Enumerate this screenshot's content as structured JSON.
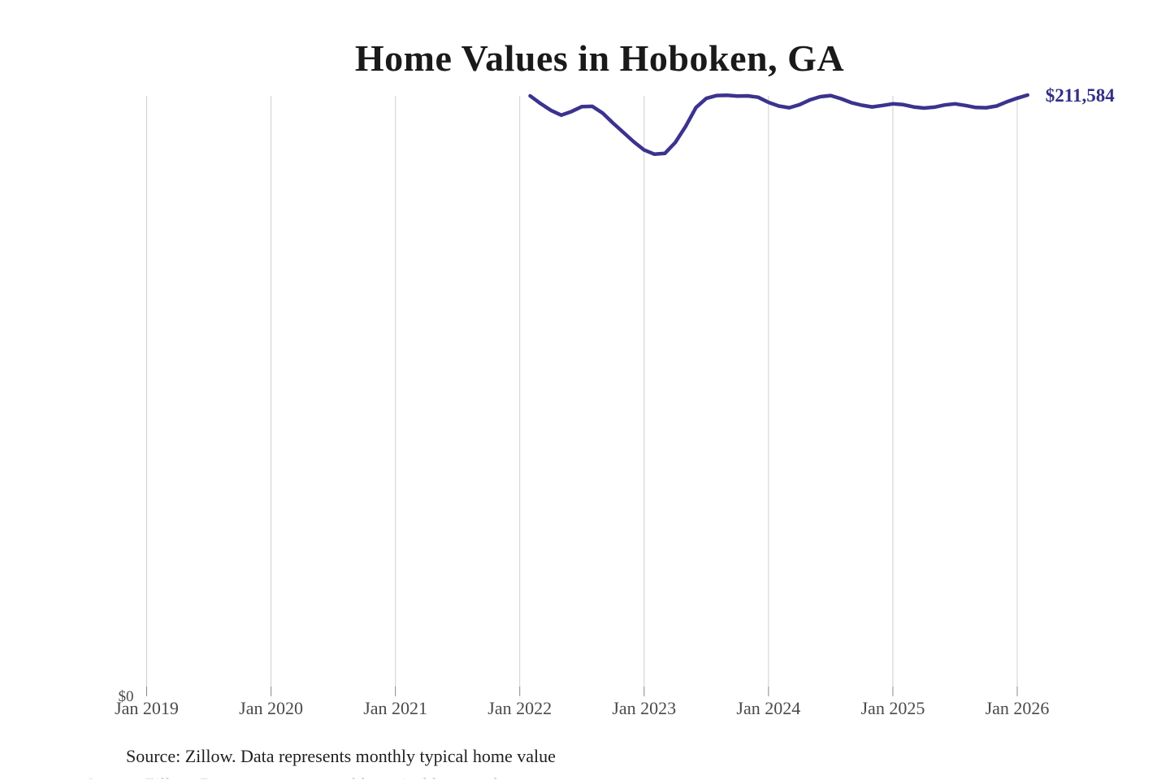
{
  "title": "Home Values in Hoboken, GA",
  "annotation": {
    "end_value_label": "$211,584"
  },
  "footer": {
    "source": "Source: Zillow. Data represents monthly typical home value"
  },
  "chart_data": {
    "type": "line",
    "title": "Home Values in Hoboken, GA",
    "xlabel": "",
    "ylabel": "",
    "x_tick_labels": [
      "Jan 2019",
      "Jan 2020",
      "Jan 2021",
      "Jan 2022",
      "Jan 2023",
      "Jan 2024",
      "Jan 2025",
      "Jan 2026"
    ],
    "y_zero_label": "$0",
    "end_label": "$211,584",
    "ylim": [
      0,
      211584
    ],
    "grid": "vertical-gridlines-only",
    "legend": "none",
    "line_color": "#3b338e",
    "grid_color": "#cfcfcf",
    "tick_color": "#8a8a8a",
    "source_note": "Source: Zillow. Data represents monthly typical home value",
    "series": [
      {
        "name": "Monthly typical home value",
        "months": [
          "2022-02",
          "2022-03",
          "2022-04",
          "2022-05",
          "2022-06",
          "2022-07",
          "2022-08",
          "2022-09",
          "2022-10",
          "2022-11",
          "2022-12",
          "2023-01",
          "2023-02",
          "2023-03",
          "2023-04",
          "2023-05",
          "2023-06",
          "2023-07",
          "2023-08",
          "2023-09",
          "2023-10",
          "2023-11",
          "2023-12",
          "2024-01",
          "2024-02",
          "2024-03",
          "2024-04",
          "2024-05",
          "2024-06",
          "2024-07",
          "2024-08",
          "2024-09",
          "2024-10",
          "2024-11",
          "2024-12",
          "2025-01",
          "2025-02",
          "2025-03",
          "2025-04",
          "2025-05",
          "2025-06",
          "2025-07",
          "2025-08",
          "2025-09",
          "2025-10",
          "2025-11",
          "2025-12",
          "2026-01",
          "2026-02"
        ],
        "values": [
          211300,
          208600,
          206200,
          204500,
          205800,
          207500,
          207600,
          205200,
          201700,
          198400,
          195100,
          192200,
          190700,
          191000,
          194800,
          200500,
          207200,
          210400,
          211400,
          211500,
          211200,
          211300,
          210800,
          209000,
          207700,
          207100,
          208200,
          209900,
          211000,
          211400,
          210300,
          208900,
          208000,
          207400,
          207900,
          208500,
          208200,
          207400,
          207000,
          207300,
          208100,
          208500,
          207900,
          207200,
          207100,
          207700,
          209200,
          210500,
          211584
        ]
      }
    ]
  }
}
